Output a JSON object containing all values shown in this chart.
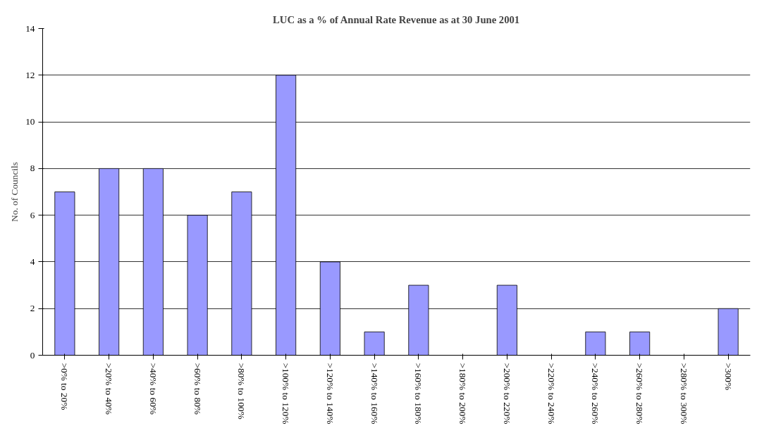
{
  "chart_data": {
    "type": "bar",
    "title": "LUC as a % of Annual Rate Revenue as at 30 June 2001",
    "ylabel": "No. of Councils",
    "categories": [
      ">0% to 20%",
      ">20% to 40%",
      ">40% to 60%",
      ">60% to 80%",
      ">80% to 100%",
      ">100% to 120%",
      ">120% to 140%",
      ">140% to 160%",
      ">160% to 180%",
      ">180% to 200%",
      ">200% to 220%",
      ">220% to 240%",
      ">240% to 260%",
      ">260% to 280%",
      ">280% to 300%",
      ">300%"
    ],
    "values": [
      7,
      8,
      8,
      6,
      7,
      12,
      4,
      1,
      3,
      0,
      3,
      0,
      1,
      1,
      0,
      2
    ],
    "color": "#9999ff",
    "ylim": [
      0,
      14
    ],
    "yticks": [
      0,
      2,
      4,
      6,
      8,
      10,
      12,
      14
    ],
    "grid": "y"
  }
}
